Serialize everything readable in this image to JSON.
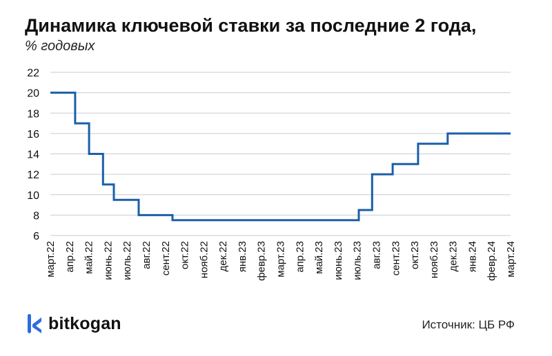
{
  "title": "Динамика ключевой ставки за последние 2 года,",
  "subtitle": "% годовых",
  "brand": {
    "name": "bitkogan",
    "icon": "bitkogan-logo-icon"
  },
  "source": "Источник: ЦБ РФ",
  "colors": {
    "line": "#1a5fa8",
    "grid": "#c9cbd6",
    "text": "#111111",
    "logo": "#2d6cdf"
  },
  "chart_data": {
    "type": "line",
    "step": true,
    "title": "Динамика ключевой ставки за последние 2 года,",
    "subtitle": "% годовых",
    "xlabel": "",
    "ylabel": "",
    "ylim": [
      6,
      22
    ],
    "yticks": [
      6,
      8,
      10,
      12,
      14,
      16,
      18,
      20,
      22
    ],
    "grid": "horizontal",
    "categories": [
      "март.22",
      "апр.22",
      "май.22",
      "июнь.22",
      "июль.22",
      "авг.22",
      "сент.22",
      "окт.22",
      "нояб.22",
      "дек.22",
      "янв.23",
      "февр.23",
      "март.23",
      "апр.23",
      "май.23",
      "июнь.23",
      "июль.23",
      "авг.23",
      "сент.23",
      "окт.23",
      "нояб.23",
      "дек.23",
      "янв.24",
      "февр.24",
      "март.24"
    ],
    "series": [
      {
        "points": [
          [
            "2022-03-01",
            20
          ],
          [
            "2022-04-11",
            17
          ],
          [
            "2022-05-04",
            14
          ],
          [
            "2022-05-27",
            11
          ],
          [
            "2022-06-14",
            9.5
          ],
          [
            "2022-07-25",
            8
          ],
          [
            "2022-09-19",
            7.5
          ],
          [
            "2023-07-24",
            8.5
          ],
          [
            "2023-08-15",
            12
          ],
          [
            "2023-09-18",
            13
          ],
          [
            "2023-10-30",
            15
          ],
          [
            "2023-12-18",
            16
          ],
          [
            "2024-03-31",
            16
          ]
        ]
      }
    ]
  }
}
